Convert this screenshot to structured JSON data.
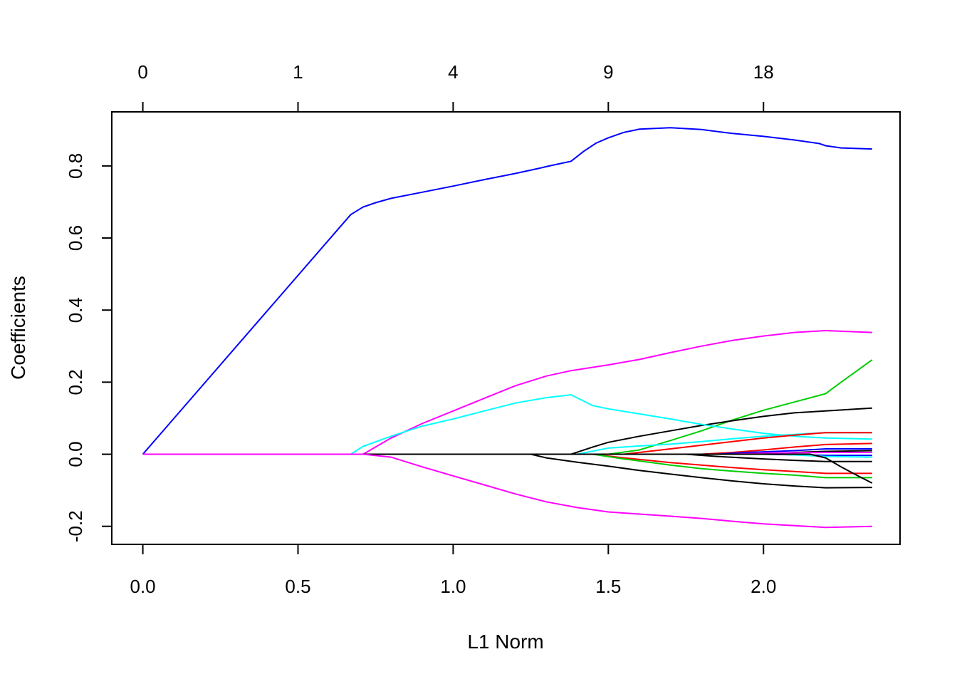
{
  "chart_data": {
    "type": "line",
    "xlabel": "L1 Norm",
    "ylabel": "Coefficients",
    "xlim": [
      -0.1,
      2.44
    ],
    "ylim": [
      -0.25,
      0.95
    ],
    "x_ticks": [
      "0.0",
      "0.5",
      "1.0",
      "1.5",
      "2.0"
    ],
    "x_tick_values": [
      0.0,
      0.5,
      1.0,
      1.5,
      2.0
    ],
    "y_ticks": [
      "-0.2",
      "0.0",
      "0.2",
      "0.4",
      "0.6",
      "0.8"
    ],
    "y_tick_values": [
      -0.2,
      0.0,
      0.2,
      0.4,
      0.6,
      0.8
    ],
    "top_axis": {
      "labels": [
        "0",
        "1",
        "4",
        "9",
        "18"
      ],
      "positions": [
        0.0,
        0.5,
        1.0,
        1.5,
        2.0
      ]
    },
    "grid": false,
    "series": [
      {
        "color": "#0000ff",
        "points": [
          [
            0,
            0
          ],
          [
            0.67,
            0.665
          ],
          [
            0.71,
            0.686
          ],
          [
            0.75,
            0.698
          ],
          [
            0.8,
            0.71
          ],
          [
            0.9,
            0.727
          ],
          [
            1.0,
            0.744
          ],
          [
            1.1,
            0.762
          ],
          [
            1.2,
            0.779
          ],
          [
            1.27,
            0.792
          ],
          [
            1.31,
            0.8
          ],
          [
            1.38,
            0.813
          ],
          [
            1.42,
            0.84
          ],
          [
            1.46,
            0.863
          ],
          [
            1.5,
            0.878
          ],
          [
            1.55,
            0.893
          ],
          [
            1.6,
            0.902
          ],
          [
            1.7,
            0.906
          ],
          [
            1.8,
            0.901
          ],
          [
            1.9,
            0.89
          ],
          [
            2.0,
            0.882
          ],
          [
            2.1,
            0.872
          ],
          [
            2.18,
            0.862
          ],
          [
            2.2,
            0.856
          ],
          [
            2.25,
            0.85
          ],
          [
            2.35,
            0.847
          ]
        ]
      },
      {
        "color": "#ff00ff",
        "points": [
          [
            0,
            0
          ],
          [
            0.71,
            0
          ],
          [
            0.8,
            0.045
          ],
          [
            0.9,
            0.085
          ],
          [
            1.0,
            0.12
          ],
          [
            1.1,
            0.155
          ],
          [
            1.2,
            0.19
          ],
          [
            1.3,
            0.217
          ],
          [
            1.38,
            0.232
          ],
          [
            1.5,
            0.248
          ],
          [
            1.6,
            0.263
          ],
          [
            1.7,
            0.282
          ],
          [
            1.8,
            0.3
          ],
          [
            1.9,
            0.316
          ],
          [
            2.0,
            0.328
          ],
          [
            2.1,
            0.338
          ],
          [
            2.2,
            0.343
          ],
          [
            2.35,
            0.338
          ]
        ]
      },
      {
        "color": "#00cd00",
        "points": [
          [
            0,
            0
          ],
          [
            1.5,
            0
          ],
          [
            1.6,
            0.012
          ],
          [
            1.7,
            0.038
          ],
          [
            1.8,
            0.065
          ],
          [
            1.9,
            0.095
          ],
          [
            2.0,
            0.122
          ],
          [
            2.1,
            0.145
          ],
          [
            2.2,
            0.168
          ],
          [
            2.25,
            0.2
          ],
          [
            2.35,
            0.262
          ]
        ]
      },
      {
        "color": "#000000",
        "points": [
          [
            0,
            0
          ],
          [
            1.38,
            0
          ],
          [
            1.45,
            0.02
          ],
          [
            1.5,
            0.033
          ],
          [
            1.6,
            0.05
          ],
          [
            1.7,
            0.065
          ],
          [
            1.8,
            0.08
          ],
          [
            1.9,
            0.093
          ],
          [
            2.0,
            0.105
          ],
          [
            2.1,
            0.115
          ],
          [
            2.2,
            0.12
          ],
          [
            2.35,
            0.128
          ]
        ]
      },
      {
        "color": "#00ffff",
        "points": [
          [
            0,
            0
          ],
          [
            0.67,
            0
          ],
          [
            0.71,
            0.022
          ],
          [
            0.8,
            0.05
          ],
          [
            0.9,
            0.078
          ],
          [
            1.0,
            0.098
          ],
          [
            1.1,
            0.12
          ],
          [
            1.2,
            0.142
          ],
          [
            1.3,
            0.157
          ],
          [
            1.38,
            0.165
          ],
          [
            1.45,
            0.135
          ],
          [
            1.5,
            0.126
          ],
          [
            1.6,
            0.112
          ],
          [
            1.7,
            0.098
          ],
          [
            1.8,
            0.083
          ],
          [
            1.9,
            0.07
          ],
          [
            2.0,
            0.058
          ],
          [
            2.1,
            0.05
          ],
          [
            2.2,
            0.045
          ],
          [
            2.35,
            0.042
          ]
        ]
      },
      {
        "color": "#00ffff",
        "points": [
          [
            0,
            0
          ],
          [
            1.4,
            0
          ],
          [
            1.5,
            0.017
          ],
          [
            1.6,
            0.023
          ],
          [
            1.7,
            0.028
          ],
          [
            1.8,
            0.035
          ],
          [
            1.9,
            0.043
          ],
          [
            2.0,
            0.05
          ],
          [
            2.1,
            0.055
          ],
          [
            2.2,
            0.06
          ],
          [
            2.35,
            0.06
          ]
        ]
      },
      {
        "color": "#ff0000",
        "points": [
          [
            0,
            0
          ],
          [
            1.55,
            0
          ],
          [
            1.6,
            0.005
          ],
          [
            1.7,
            0.015
          ],
          [
            1.8,
            0.025
          ],
          [
            1.9,
            0.035
          ],
          [
            2.0,
            0.045
          ],
          [
            2.1,
            0.053
          ],
          [
            2.2,
            0.06
          ],
          [
            2.35,
            0.06
          ]
        ]
      },
      {
        "color": "#ff0000",
        "points": [
          [
            0,
            0
          ],
          [
            1.8,
            0
          ],
          [
            1.9,
            0.005
          ],
          [
            2.0,
            0.012
          ],
          [
            2.1,
            0.02
          ],
          [
            2.2,
            0.027
          ],
          [
            2.35,
            0.03
          ]
        ]
      },
      {
        "color": "#0000ff",
        "points": [
          [
            0,
            0
          ],
          [
            1.85,
            0
          ],
          [
            1.95,
            0.005
          ],
          [
            2.1,
            0.01
          ],
          [
            2.2,
            0.015
          ],
          [
            2.35,
            0.015
          ]
        ]
      },
      {
        "color": "#000000",
        "points": [
          [
            0,
            0
          ],
          [
            2.0,
            0
          ],
          [
            2.1,
            0.005
          ],
          [
            2.2,
            0.008
          ],
          [
            2.35,
            0.01
          ]
        ]
      },
      {
        "color": "#ff00ff",
        "points": [
          [
            0,
            0
          ],
          [
            1.9,
            0
          ],
          [
            2.0,
            0.003
          ],
          [
            2.2,
            0.005
          ],
          [
            2.35,
            0.005
          ]
        ]
      },
      {
        "color": "#0000ff",
        "points": [
          [
            0,
            0
          ],
          [
            2.0,
            0
          ],
          [
            2.2,
            -0.003
          ],
          [
            2.35,
            -0.003
          ]
        ]
      },
      {
        "color": "#00ffff",
        "points": [
          [
            0,
            0
          ],
          [
            2.05,
            0
          ],
          [
            2.2,
            -0.006
          ],
          [
            2.35,
            -0.008
          ]
        ]
      },
      {
        "color": "#000000",
        "points": [
          [
            0,
            0
          ],
          [
            1.75,
            0
          ],
          [
            1.85,
            -0.006
          ],
          [
            2.0,
            -0.013
          ],
          [
            2.1,
            -0.017
          ],
          [
            2.2,
            -0.02
          ],
          [
            2.35,
            -0.02
          ]
        ]
      },
      {
        "color": "#ff0000",
        "points": [
          [
            0,
            0
          ],
          [
            1.45,
            0
          ],
          [
            1.55,
            -0.01
          ],
          [
            1.7,
            -0.023
          ],
          [
            1.8,
            -0.03
          ],
          [
            1.9,
            -0.037
          ],
          [
            2.0,
            -0.043
          ],
          [
            2.1,
            -0.048
          ],
          [
            2.2,
            -0.053
          ],
          [
            2.35,
            -0.053
          ]
        ]
      },
      {
        "color": "#00cd00",
        "points": [
          [
            0,
            0
          ],
          [
            1.45,
            0
          ],
          [
            1.55,
            -0.013
          ],
          [
            1.7,
            -0.03
          ],
          [
            1.8,
            -0.04
          ],
          [
            1.9,
            -0.047
          ],
          [
            2.0,
            -0.053
          ],
          [
            2.1,
            -0.058
          ],
          [
            2.2,
            -0.065
          ],
          [
            2.35,
            -0.065
          ]
        ]
      },
      {
        "color": "#000000",
        "points": [
          [
            0,
            0
          ],
          [
            2.15,
            0
          ],
          [
            2.2,
            -0.01
          ],
          [
            2.25,
            -0.035
          ],
          [
            2.3,
            -0.058
          ],
          [
            2.35,
            -0.08
          ]
        ]
      },
      {
        "color": "#000000",
        "points": [
          [
            0,
            0
          ],
          [
            1.25,
            0
          ],
          [
            1.3,
            -0.01
          ],
          [
            1.4,
            -0.022
          ],
          [
            1.5,
            -0.033
          ],
          [
            1.6,
            -0.045
          ],
          [
            1.7,
            -0.055
          ],
          [
            1.8,
            -0.065
          ],
          [
            1.9,
            -0.074
          ],
          [
            2.0,
            -0.082
          ],
          [
            2.1,
            -0.088
          ],
          [
            2.2,
            -0.093
          ],
          [
            2.35,
            -0.092
          ]
        ]
      },
      {
        "color": "#ff00ff",
        "points": [
          [
            0,
            0
          ],
          [
            0.71,
            0
          ],
          [
            0.8,
            -0.008
          ],
          [
            0.9,
            -0.035
          ],
          [
            1.0,
            -0.06
          ],
          [
            1.1,
            -0.085
          ],
          [
            1.2,
            -0.11
          ],
          [
            1.3,
            -0.132
          ],
          [
            1.4,
            -0.148
          ],
          [
            1.5,
            -0.16
          ],
          [
            1.6,
            -0.166
          ],
          [
            1.7,
            -0.172
          ],
          [
            1.8,
            -0.178
          ],
          [
            1.9,
            -0.186
          ],
          [
            2.0,
            -0.193
          ],
          [
            2.1,
            -0.198
          ],
          [
            2.2,
            -0.203
          ],
          [
            2.35,
            -0.2
          ]
        ]
      }
    ]
  }
}
